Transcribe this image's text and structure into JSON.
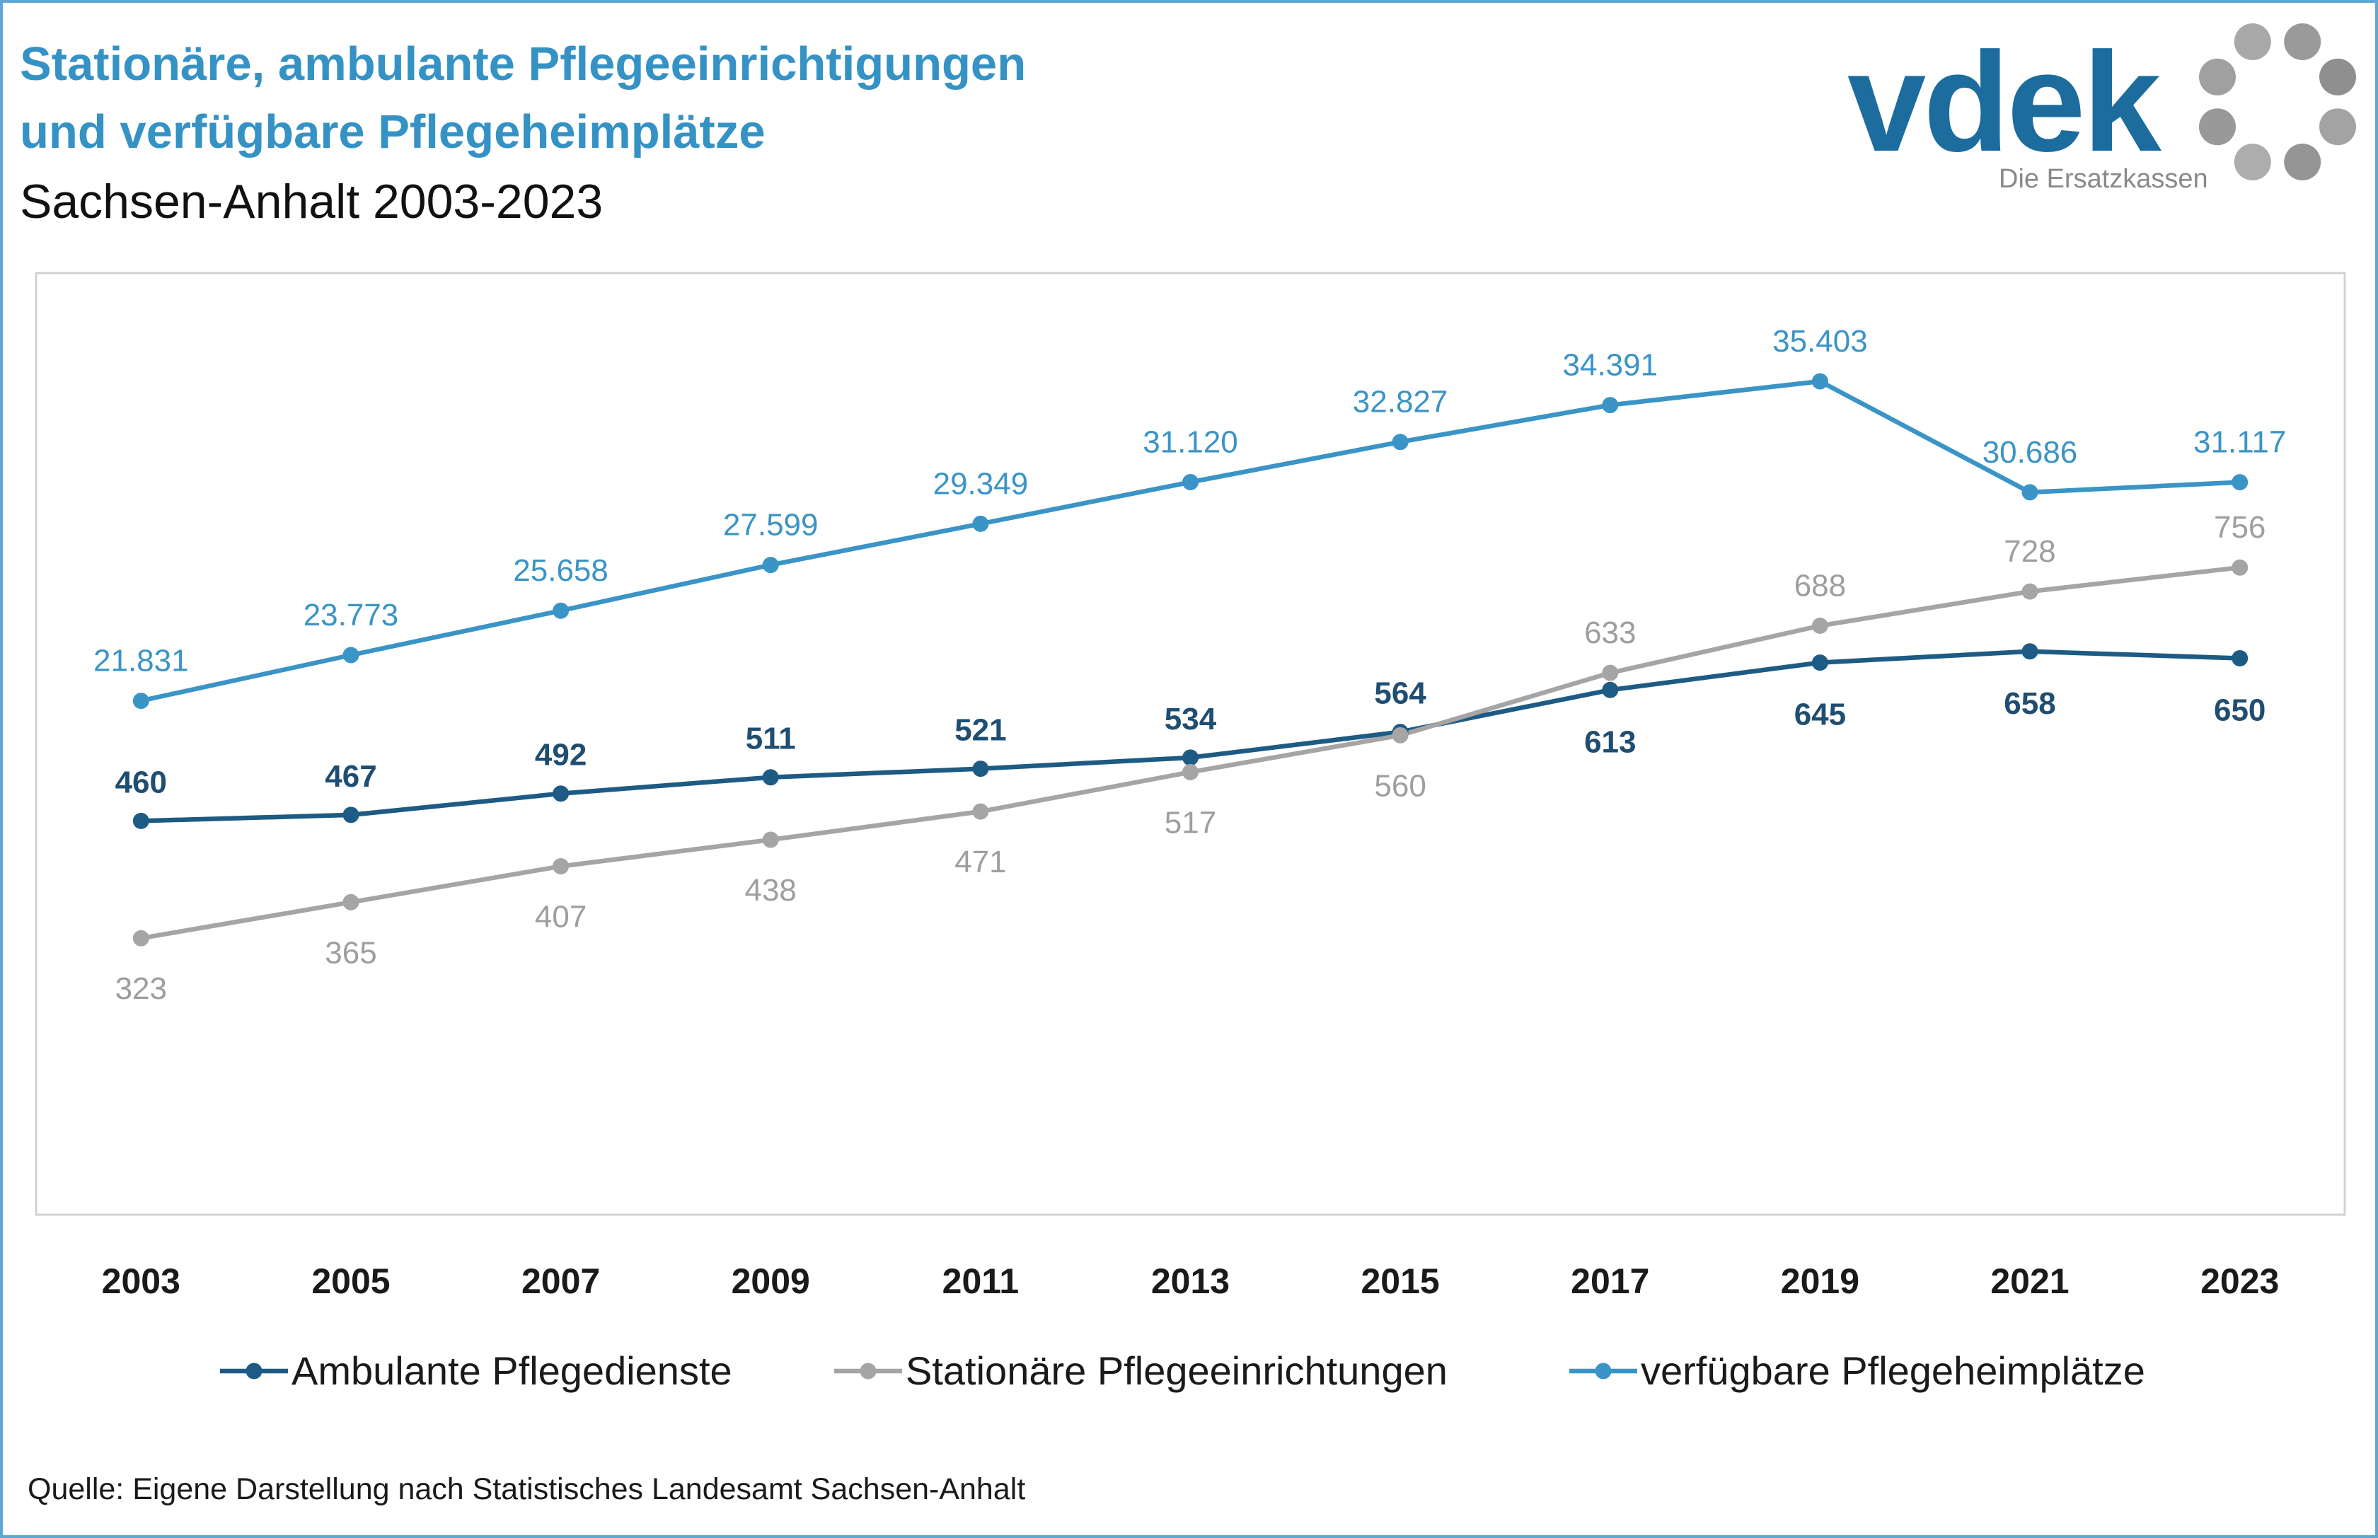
{
  "colors": {
    "title": "#3592c5",
    "frame": "#5ea9d4",
    "logo_wordmark": "#1c6c9e",
    "logo_tagline": "#8a8a8a",
    "logo_mark": "#9d9d9d"
  },
  "logo": {
    "wordmark": "vdek",
    "tagline": "Die Ersatzkassen"
  },
  "chart_data": {
    "type": "line",
    "title": [
      "Stationäre, ambulante Pflegeeinrichtigungen",
      "und verfügbare Pflegeheimplätze"
    ],
    "subtitle": "Sachsen-Anhalt 2003-2023",
    "categories": [
      "2003",
      "2005",
      "2007",
      "2009",
      "2011",
      "2013",
      "2015",
      "2017",
      "2019",
      "2021",
      "2023"
    ],
    "series": [
      {
        "name": "Ambulante Pflegedienste",
        "axis": "left",
        "color": "#1d5b84",
        "label_color": "#1f4e72",
        "values": [
          460,
          467,
          492,
          511,
          521,
          534,
          564,
          613,
          645,
          658,
          650
        ],
        "labels": [
          "460",
          "467",
          "492",
          "511",
          "521",
          "534",
          "564",
          "613",
          "645",
          "658",
          "650"
        ]
      },
      {
        "name": "Stationäre Pflegeeinrichtungen",
        "axis": "left",
        "color": "#a5a5a5",
        "label_color": "#9e9e9e",
        "values": [
          323,
          365,
          407,
          438,
          471,
          517,
          560,
          633,
          688,
          728,
          756
        ],
        "labels": [
          "323",
          "365",
          "407",
          "438",
          "471",
          "517",
          "560",
          "633",
          "688",
          "728",
          "756"
        ]
      },
      {
        "name": "verfügbare Pflegeheimplätze",
        "axis": "right",
        "color": "#3a94c6",
        "label_color": "#3a94c6",
        "values": [
          21831,
          23773,
          25658,
          27599,
          29349,
          31120,
          32827,
          34391,
          35403,
          30686,
          31117
        ],
        "labels": [
          "21.831",
          "23.773",
          "25.658",
          "27.599",
          "29.349",
          "31.120",
          "32.827",
          "34.391",
          "35.403",
          "30.686",
          "31.117"
        ]
      }
    ],
    "ylim": [
      0,
      1100
    ],
    "y2lim": [
      0,
      40000
    ],
    "grid": false,
    "legend": "bottom",
    "source": "Quelle: Eigene Darstellung nach Statistisches Landesamt Sachsen-Anhalt"
  }
}
